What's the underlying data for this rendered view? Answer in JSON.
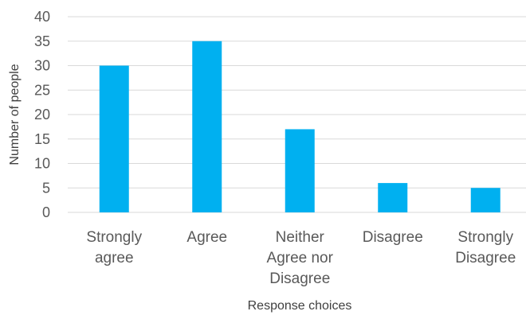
{
  "chart_data": {
    "type": "bar",
    "categories": [
      [
        "Strongly",
        "agree"
      ],
      [
        "Agree"
      ],
      [
        "Neither",
        "Agree nor",
        "Disagree"
      ],
      [
        "Disagree"
      ],
      [
        "Strongly",
        "Disagree"
      ]
    ],
    "values": [
      30,
      35,
      17,
      6,
      5
    ],
    "title": "",
    "xlabel": "Response choices",
    "ylabel": "Number of people",
    "ylim": [
      0,
      40
    ],
    "yticks": [
      0,
      5,
      10,
      15,
      20,
      25,
      30,
      35,
      40
    ],
    "grid": true,
    "legend": "none",
    "bar_color": "#00b0f0",
    "grid_color": "#d9d9d9"
  }
}
